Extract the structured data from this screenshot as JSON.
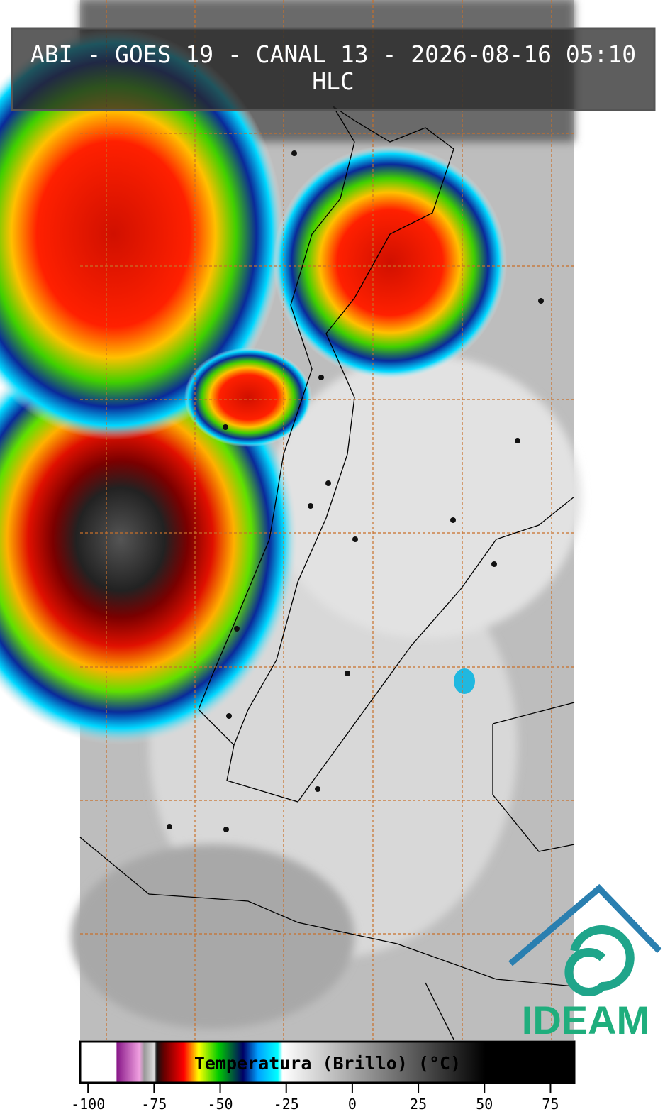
{
  "header": {
    "title": "ABI - GOES 19 - CANAL 13 - 2026-08-16 05:10",
    "subtitle": "HLC"
  },
  "colorbar": {
    "label": "Temperatura (Brillo) (°C)",
    "lim": [
      -103,
      84
    ],
    "ticks": [
      -100,
      -75,
      -50,
      -25,
      0,
      25,
      50,
      75
    ]
  },
  "logo": {
    "text": "IDEAM"
  }
}
